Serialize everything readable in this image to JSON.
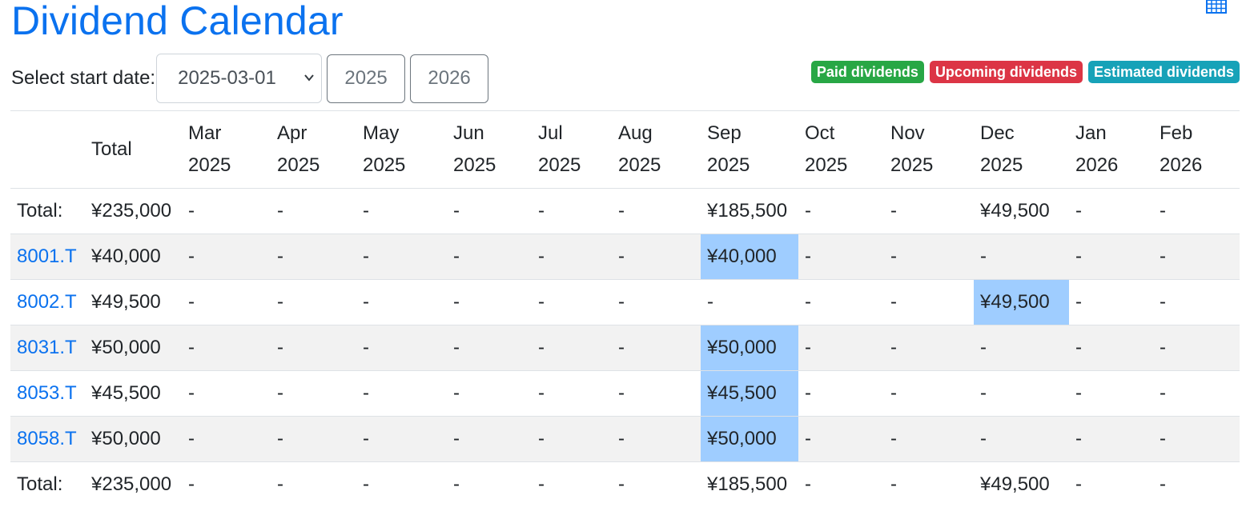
{
  "title": "Dividend Calendar",
  "icons": {
    "calendar": "calendar-grid-icon",
    "select": "chevron-down-icon"
  },
  "controls": {
    "start_label": "Select start date:",
    "start_value": "2025-03-01",
    "year_buttons": [
      "2025",
      "2026"
    ]
  },
  "legend": [
    {
      "label": "Paid dividends",
      "color": "#28a745"
    },
    {
      "label": "Upcoming dividends",
      "color": "#dc3545"
    },
    {
      "label": "Estimated dividends",
      "color": "#17a2b8"
    }
  ],
  "colors": {
    "accent": "#0b72ef",
    "estimated_cell": "#9fcdff",
    "stripe": "#f2f2f2"
  },
  "table": {
    "headers": [
      {
        "line1": "",
        "line2": ""
      },
      {
        "line1": "Total",
        "line2": ""
      },
      {
        "line1": "Mar",
        "line2": "2025"
      },
      {
        "line1": "Apr",
        "line2": "2025"
      },
      {
        "line1": "May",
        "line2": "2025"
      },
      {
        "line1": "Jun",
        "line2": "2025"
      },
      {
        "line1": "Jul",
        "line2": "2025"
      },
      {
        "line1": "Aug",
        "line2": "2025"
      },
      {
        "line1": "Sep",
        "line2": "2025"
      },
      {
        "line1": "Oct",
        "line2": "2025"
      },
      {
        "line1": "Nov",
        "line2": "2025"
      },
      {
        "line1": "Dec",
        "line2": "2025"
      },
      {
        "line1": "Jan",
        "line2": "2026"
      },
      {
        "line1": "Feb",
        "line2": "2026"
      }
    ],
    "rows": [
      {
        "type": "total",
        "label": "Total:",
        "cells": [
          "¥235,000",
          "-",
          "-",
          "-",
          "-",
          "-",
          "-",
          "¥185,500",
          "-",
          "-",
          "¥49,500",
          "-",
          "-"
        ],
        "highlight": []
      },
      {
        "type": "stock",
        "label": "8001.T",
        "cells": [
          "¥40,000",
          "-",
          "-",
          "-",
          "-",
          "-",
          "-",
          "¥40,000",
          "-",
          "-",
          "-",
          "-",
          "-"
        ],
        "highlight": [
          7
        ]
      },
      {
        "type": "stock",
        "label": "8002.T",
        "cells": [
          "¥49,500",
          "-",
          "-",
          "-",
          "-",
          "-",
          "-",
          "-",
          "-",
          "-",
          "¥49,500",
          "-",
          "-"
        ],
        "highlight": [
          10
        ]
      },
      {
        "type": "stock",
        "label": "8031.T",
        "cells": [
          "¥50,000",
          "-",
          "-",
          "-",
          "-",
          "-",
          "-",
          "¥50,000",
          "-",
          "-",
          "-",
          "-",
          "-"
        ],
        "highlight": [
          7
        ]
      },
      {
        "type": "stock",
        "label": "8053.T",
        "cells": [
          "¥45,500",
          "-",
          "-",
          "-",
          "-",
          "-",
          "-",
          "¥45,500",
          "-",
          "-",
          "-",
          "-",
          "-"
        ],
        "highlight": [
          7
        ]
      },
      {
        "type": "stock",
        "label": "8058.T",
        "cells": [
          "¥50,000",
          "-",
          "-",
          "-",
          "-",
          "-",
          "-",
          "¥50,000",
          "-",
          "-",
          "-",
          "-",
          "-"
        ],
        "highlight": [
          7
        ]
      },
      {
        "type": "total",
        "label": "Total:",
        "cells": [
          "¥235,000",
          "-",
          "-",
          "-",
          "-",
          "-",
          "-",
          "¥185,500",
          "-",
          "-",
          "¥49,500",
          "-",
          "-"
        ],
        "highlight": []
      }
    ]
  }
}
